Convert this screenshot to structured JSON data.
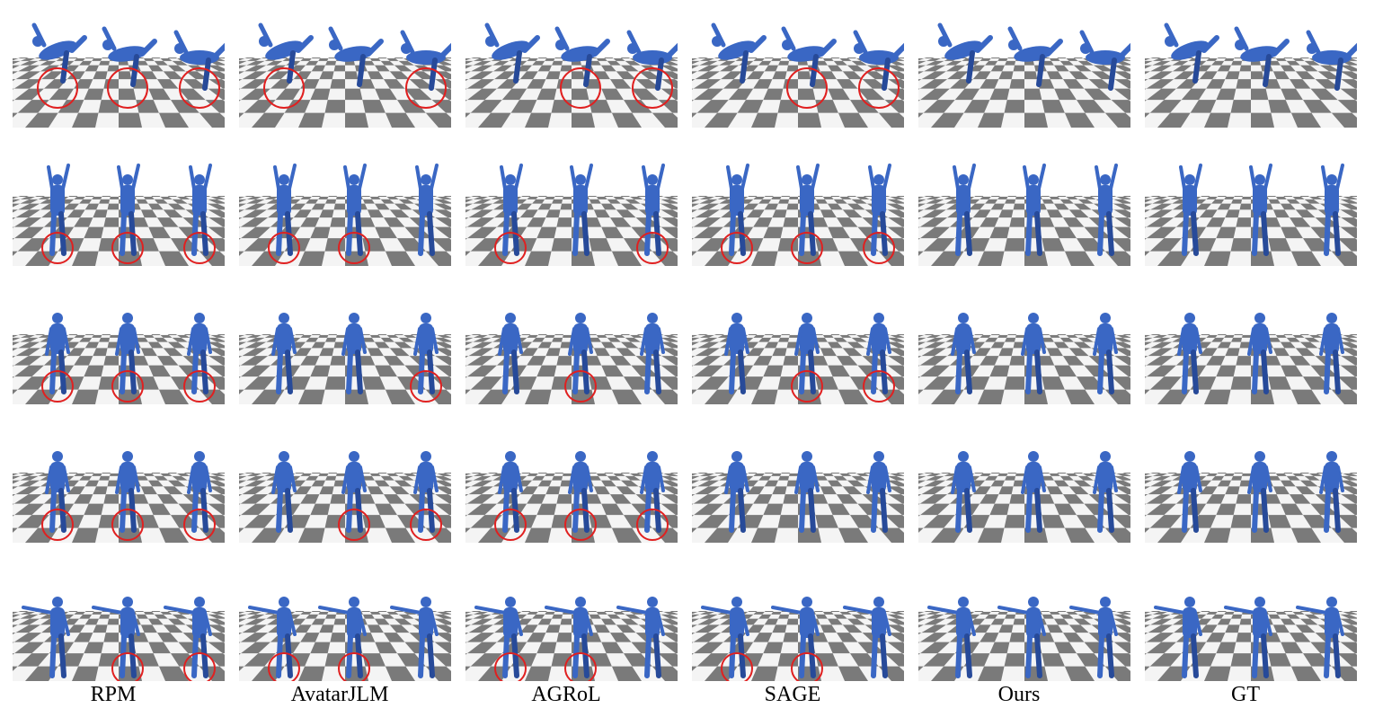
{
  "columns": [
    {
      "label": "RPM"
    },
    {
      "label": "AvatarJLM"
    },
    {
      "label": "AGRoL"
    },
    {
      "label": "SAGE"
    },
    {
      "label": "Ours"
    },
    {
      "label": "GT"
    }
  ],
  "row_count": 5,
  "figures_per_panel": 3,
  "colors": {
    "figure": "#3a67c4",
    "figure_shadow": "#274a99",
    "floor_dark": "#7a7a7a",
    "floor_light": "#f4f4f4",
    "highlight": "#e02020"
  },
  "highlights": [
    [
      [
        0,
        1,
        2
      ],
      [
        0,
        1,
        2
      ],
      [
        0,
        1,
        2
      ],
      [
        0,
        1,
        2
      ],
      [
        1,
        2
      ]
    ],
    [
      [
        0,
        2
      ],
      [
        0,
        1
      ],
      [
        2
      ],
      [
        1,
        2
      ],
      [
        0,
        1
      ]
    ],
    [
      [
        1,
        2
      ],
      [
        0,
        2
      ],
      [
        1
      ],
      [
        0,
        1,
        2
      ],
      [
        0,
        1
      ]
    ],
    [
      [
        1,
        2
      ],
      [
        0,
        1,
        2
      ],
      [
        1,
        2
      ],
      [],
      [
        0,
        1
      ]
    ],
    [
      [],
      [],
      [],
      [],
      []
    ],
    [
      [],
      [],
      [],
      [],
      []
    ]
  ]
}
